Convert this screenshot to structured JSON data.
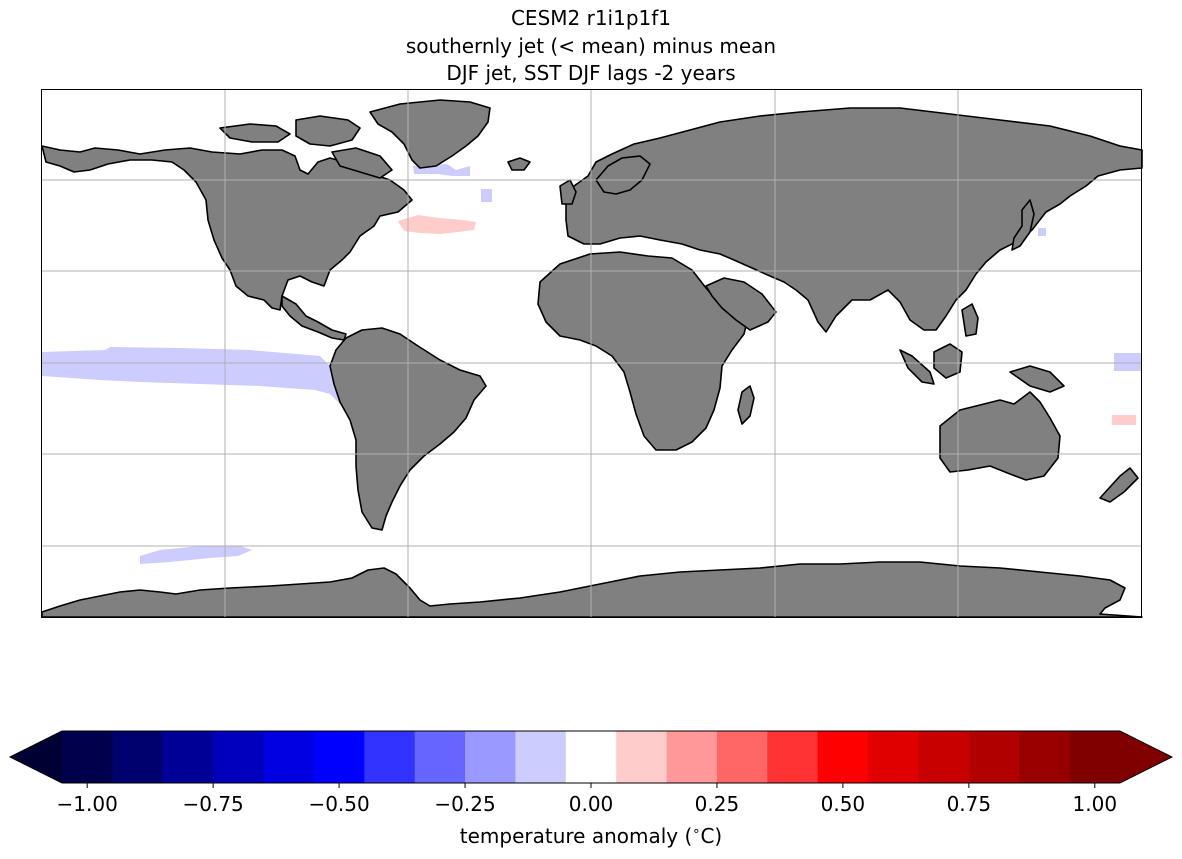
{
  "title": {
    "line1": "CESM2 r1i1p1f1",
    "line2": "southernly jet (< mean) minus mean",
    "line3": "DJF jet, SST DJF lags -2 years"
  },
  "map": {
    "projection": "PlateCarree",
    "gridlines": true,
    "land_color": "#808080",
    "ocean_color": "#ffffff",
    "anomaly_patches": [
      {
        "region": "Equatorial Pacific (cold tongue)",
        "value": -0.1,
        "color": "#ccccff"
      },
      {
        "region": "Southeast Pacific off Peru/Ecuador",
        "value": -0.1,
        "color": "#ccccff"
      },
      {
        "region": "Southern Ocean, Pacific sector",
        "value": -0.1,
        "color": "#ccccff"
      },
      {
        "region": "Labrador Sea / south of Greenland",
        "value": -0.1,
        "color": "#ccccff"
      },
      {
        "region": "Gulf Stream off Newfoundland",
        "value": 0.1,
        "color": "#ffcccc"
      },
      {
        "region": "Western Pacific near date line (north)",
        "value": -0.1,
        "color": "#ccccff"
      },
      {
        "region": "Southwest Pacific near date line",
        "value": 0.1,
        "color": "#ffcccc"
      },
      {
        "region": "East of Japan",
        "value": -0.1,
        "color": "#ccccff"
      }
    ]
  },
  "colorbar": {
    "label": "temperature anomaly ( ∘C)",
    "label_text": "temperature anomaly (",
    "label_unit": "C)",
    "extend": "both",
    "boundaries": [
      -1.05,
      -0.95,
      -0.85,
      -0.75,
      -0.65,
      -0.55,
      -0.45,
      -0.35,
      -0.25,
      -0.15,
      -0.05,
      0.05,
      0.15,
      0.25,
      0.35,
      0.45,
      0.55,
      0.65,
      0.75,
      0.85,
      0.95,
      1.05
    ],
    "colors": [
      "#00004c",
      "#00006e",
      "#000096",
      "#0000bc",
      "#0000e0",
      "#0000ff",
      "#3333ff",
      "#6666ff",
      "#9999ff",
      "#ccccff",
      "#ffffff",
      "#ffcccc",
      "#ff9999",
      "#ff6666",
      "#ff3333",
      "#ff0000",
      "#e00000",
      "#c80000",
      "#b00000",
      "#980000",
      "#800000"
    ],
    "under_color": "#000033",
    "over_color": "#800000",
    "ticks": [
      "−1.00",
      "−0.75",
      "−0.50",
      "−0.25",
      "0.00",
      "0.25",
      "0.50",
      "0.75",
      "1.00"
    ]
  }
}
